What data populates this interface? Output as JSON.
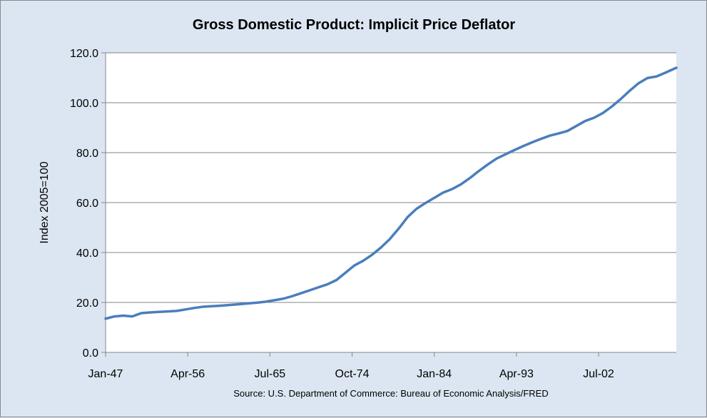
{
  "chart_data": {
    "type": "line",
    "title": "Gross Domestic Product: Implicit Price Deflator",
    "xlabel": "",
    "ylabel": "Index 2005=100",
    "source": "Source: U.S. Department of Commerce: Bureau of Economic Analysis/FRED",
    "ylim": [
      0,
      120
    ],
    "y_ticks": [
      "0.0",
      "20.0",
      "40.0",
      "60.0",
      "80.0",
      "100.0",
      "120.0"
    ],
    "x_tick_labels": [
      "Jan-47",
      "Apr-56",
      "Jul-65",
      "Oct-74",
      "Jan-84",
      "Apr-93",
      "Jul-02"
    ],
    "x_tick_years": [
      1947.0,
      1956.25,
      1965.5,
      1974.75,
      1984.0,
      1993.25,
      2002.5
    ],
    "x_range": [
      1947.0,
      2011.25
    ],
    "grid": "horizontal",
    "line_color": "#4a7ebb",
    "series": [
      {
        "x": [
          1947.0,
          1948.0,
          1949.0,
          1950.0,
          1951.0,
          1952.0,
          1953.0,
          1954.0,
          1955.0,
          1956.0,
          1957.0,
          1958.0,
          1959.0,
          1960.0,
          1961.0,
          1962.0,
          1963.0,
          1964.0,
          1965.0,
          1966.0,
          1967.0,
          1968.0,
          1969.0,
          1970.0,
          1971.0,
          1972.0,
          1973.0,
          1974.0,
          1975.0,
          1976.0,
          1977.0,
          1978.0,
          1979.0,
          1980.0,
          1981.0,
          1982.0,
          1983.0,
          1984.0,
          1985.0,
          1986.0,
          1987.0,
          1988.0,
          1989.0,
          1990.0,
          1991.0,
          1992.0,
          1993.0,
          1994.0,
          1995.0,
          1996.0,
          1997.0,
          1998.0,
          1999.0,
          2000.0,
          2001.0,
          2002.0,
          2003.0,
          2004.0,
          2005.0,
          2006.0,
          2007.0,
          2008.0,
          2009.0,
          2010.0,
          2011.25
        ],
        "values": [
          13.5,
          14.4,
          14.7,
          14.4,
          15.7,
          16.0,
          16.2,
          16.4,
          16.6,
          17.2,
          17.8,
          18.3,
          18.5,
          18.7,
          19.0,
          19.3,
          19.6,
          19.9,
          20.3,
          20.9,
          21.5,
          22.5,
          23.7,
          24.9,
          26.1,
          27.3,
          29.0,
          31.9,
          34.8,
          36.7,
          39.1,
          42.0,
          45.4,
          49.6,
          54.2,
          57.5,
          59.8,
          61.9,
          64.0,
          65.4,
          67.3,
          69.8,
          72.6,
          75.2,
          77.6,
          79.3,
          81.0,
          82.6,
          84.1,
          85.5,
          86.8,
          87.7,
          88.7,
          90.7,
          92.7,
          94.0,
          95.9,
          98.5,
          101.5,
          104.8,
          107.8,
          109.9,
          110.5,
          112.0,
          114.0
        ]
      }
    ]
  }
}
